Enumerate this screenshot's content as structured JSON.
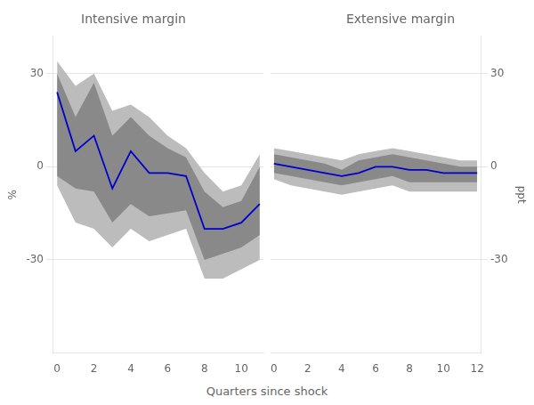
{
  "chart_data": [
    {
      "type": "line",
      "title": "Intensive margin",
      "ylabel": "%",
      "xlabel": "Quarters since shock",
      "x": [
        0,
        1,
        2,
        3,
        4,
        5,
        6,
        7,
        8,
        9,
        10,
        11
      ],
      "series": [
        {
          "color": "#0000CC",
          "values": [
            24,
            5,
            10,
            -7,
            5,
            -2,
            -2,
            -3,
            -20,
            -20,
            -18,
            -12
          ]
        }
      ],
      "bands": [
        {
          "color": "#BCBCBC",
          "upper": [
            34,
            26,
            30,
            18,
            20,
            16,
            10,
            6,
            -2,
            -8,
            -6,
            4
          ],
          "lower": [
            -6,
            -18,
            -20,
            -26,
            -20,
            -24,
            -22,
            -20,
            -36,
            -36,
            -33,
            -30
          ]
        },
        {
          "color": "#898989",
          "upper": [
            30,
            16,
            27,
            10,
            16,
            10,
            6,
            3,
            -8,
            -13,
            -11,
            0
          ],
          "lower": [
            -3,
            -7,
            -8,
            -18,
            -12,
            -16,
            -15,
            -14,
            -30,
            -28,
            -26,
            -22
          ]
        }
      ],
      "xlim": [
        -0.2,
        11.2
      ],
      "xticks": [
        0,
        2,
        4,
        6,
        8,
        10
      ],
      "ylim": [
        -60,
        42
      ],
      "yticks": [
        -30,
        0,
        30
      ],
      "grid": "y"
    },
    {
      "type": "line",
      "title": "Extensive margin",
      "ylabel": "ppt",
      "x": [
        0,
        1,
        2,
        3,
        4,
        5,
        6,
        7,
        8,
        9,
        10,
        11,
        12
      ],
      "series": [
        {
          "color": "#0000CC",
          "values": [
            1,
            0,
            -1,
            -2,
            -3,
            -2,
            0,
            0,
            -1,
            -1,
            -2,
            -2,
            -2
          ]
        }
      ],
      "bands": [
        {
          "color": "#BCBCBC",
          "upper": [
            6,
            5,
            4,
            3,
            2,
            4,
            5,
            6,
            5,
            4,
            3,
            2,
            2
          ],
          "lower": [
            -4,
            -6,
            -7,
            -8,
            -9,
            -8,
            -7,
            -6,
            -8,
            -8,
            -8,
            -8,
            -8
          ]
        },
        {
          "color": "#898989",
          "upper": [
            4,
            3,
            2,
            1,
            -1,
            2,
            3,
            4,
            3,
            2,
            1,
            0,
            0
          ],
          "lower": [
            -2,
            -3,
            -4,
            -5,
            -6,
            -5,
            -4,
            -3,
            -5,
            -5,
            -5,
            -5,
            -5
          ]
        }
      ],
      "xlim": [
        -0.2,
        12.2
      ],
      "xticks": [
        0,
        2,
        4,
        6,
        8,
        10,
        12
      ],
      "ylim": [
        -60,
        42
      ],
      "yticks": [
        -30,
        0,
        30
      ],
      "grid": "y"
    }
  ]
}
